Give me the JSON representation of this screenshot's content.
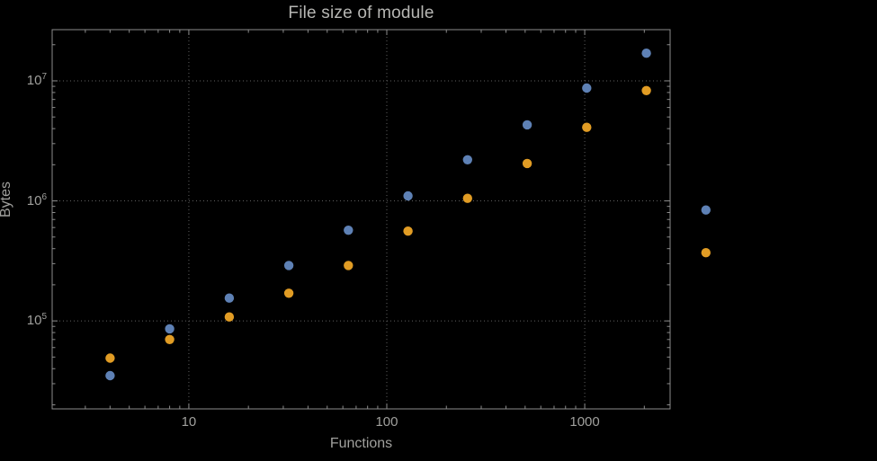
{
  "chart_data": {
    "type": "scatter",
    "title": "File size of module",
    "xlabel": "Functions",
    "ylabel": "Bytes",
    "x_scale": "log",
    "y_scale": "log",
    "xlim": [
      2.04,
      2700
    ],
    "ylim": [
      18500,
      26700000
    ],
    "grid": "major-dotted",
    "legend": "none",
    "x_ticks": [
      {
        "value": 10,
        "label": "10"
      },
      {
        "value": 100,
        "label": "100"
      },
      {
        "value": 1000,
        "label": "1000"
      }
    ],
    "y_ticks": [
      {
        "value": 100000,
        "base": "10",
        "exp": "5"
      },
      {
        "value": 1000000,
        "base": "10",
        "exp": "6"
      },
      {
        "value": 10000000,
        "base": "10",
        "exp": "7"
      }
    ],
    "x": [
      4,
      8,
      16,
      32,
      64,
      128,
      256,
      512,
      1024,
      2048,
      4096
    ],
    "series": [
      {
        "name": "series-1-blue",
        "color": "#5e81b5",
        "values": [
          35000,
          86000,
          155000,
          290000,
          570000,
          1100000,
          2200000,
          4300000,
          8700000,
          17000000,
          840000
        ]
      },
      {
        "name": "series-2-orange",
        "color": "#e19c24",
        "values": [
          49000,
          70000,
          108000,
          170000,
          290000,
          560000,
          1050000,
          2050000,
          4100000,
          8300000,
          370000
        ]
      }
    ],
    "colors": {
      "background": "#000000",
      "frame": "#8c8c8c",
      "grid": "#5f5f5f",
      "text": "#a0a09d",
      "title": "#b6b6b3",
      "series1": "#5e81b5",
      "series2": "#e19c24"
    }
  }
}
